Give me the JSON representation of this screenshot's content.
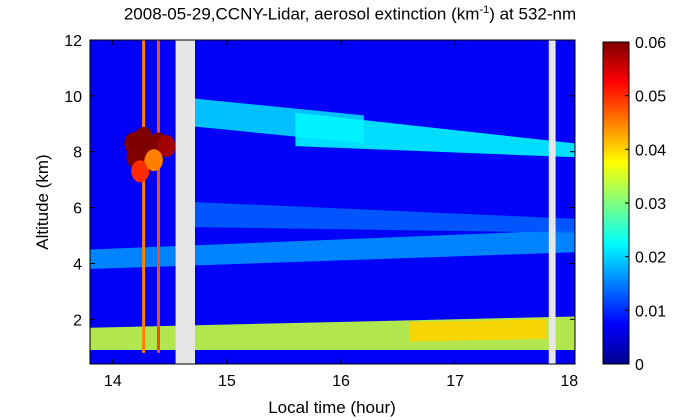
{
  "chart_data": {
    "type": "heatmap",
    "title": {
      "prefix": "2008-05-29,CCNY-Lidar, aerosol extinction (km",
      "superscript": "-1",
      "suffix": ") at 532-nm"
    },
    "xlabel": "Local time (hour)",
    "ylabel": "Altitude (km)",
    "xlim": [
      13.8,
      18.05
    ],
    "ylim": [
      0.4,
      12
    ],
    "xticks": [
      14,
      15,
      16,
      17,
      18
    ],
    "yticks": [
      2,
      4,
      6,
      8,
      10,
      12
    ],
    "colorbar": {
      "colormap": "jet",
      "range": [
        0,
        0.06
      ],
      "ticks": [
        "0",
        "0.01",
        "0.02",
        "0.03",
        "0.04",
        "0.05",
        "0.06"
      ]
    },
    "data_gaps": [
      [
        14.55,
        14.72
      ],
      [
        17.82,
        17.88
      ]
    ],
    "cloud_cells": [
      {
        "time": 14.18,
        "alt": 8.3,
        "value": 0.062
      },
      {
        "time": 14.2,
        "alt": 7.8,
        "value": 0.06
      },
      {
        "time": 14.27,
        "alt": 8.5,
        "value": 0.062
      },
      {
        "time": 14.33,
        "alt": 8.1,
        "value": 0.06
      },
      {
        "time": 14.4,
        "alt": 8.3,
        "value": 0.062
      },
      {
        "time": 14.47,
        "alt": 8.2,
        "value": 0.058
      },
      {
        "time": 14.24,
        "alt": 7.3,
        "value": 0.05
      },
      {
        "time": 14.36,
        "alt": 7.7,
        "value": 0.045
      }
    ],
    "spikes": [
      {
        "time": 14.27,
        "alt_range": [
          0.8,
          12
        ],
        "value": 0.045
      },
      {
        "time": 14.4,
        "alt_range": [
          0.8,
          12
        ],
        "value": 0.048
      }
    ],
    "layers": [
      {
        "name": "boundary layer",
        "time_range": [
          13.8,
          18.05
        ],
        "alt_start": [
          0.9,
          1.7
        ],
        "alt_end": [
          0.9,
          2.1
        ],
        "value": 0.034
      },
      {
        "name": "boundary layer core",
        "time_range": [
          16.6,
          17.8
        ],
        "alt_start": [
          1.2,
          1.9
        ],
        "alt_end": [
          1.3,
          2.0
        ],
        "value": 0.04
      },
      {
        "name": "residual layer",
        "time_range": [
          13.8,
          18.05
        ],
        "alt_start": [
          3.8,
          4.5
        ],
        "alt_end": [
          4.4,
          5.2
        ],
        "value": 0.016
      },
      {
        "name": "mid layer",
        "time_range": [
          14.7,
          18.05
        ],
        "alt_start": [
          5.3,
          6.2
        ],
        "alt_end": [
          5.1,
          5.6
        ],
        "value": 0.013
      },
      {
        "name": "upper aerosol layer",
        "time_range": [
          14.72,
          16.2
        ],
        "alt_start": [
          8.9,
          9.9
        ],
        "alt_end": [
          8.3,
          9.3
        ],
        "value": 0.02
      },
      {
        "name": "descending cirrus",
        "time_range": [
          15.6,
          18.05
        ],
        "alt_start": [
          8.2,
          9.4
        ],
        "alt_end": [
          7.8,
          8.3
        ],
        "value": 0.022
      }
    ],
    "background_value": 0.007
  }
}
